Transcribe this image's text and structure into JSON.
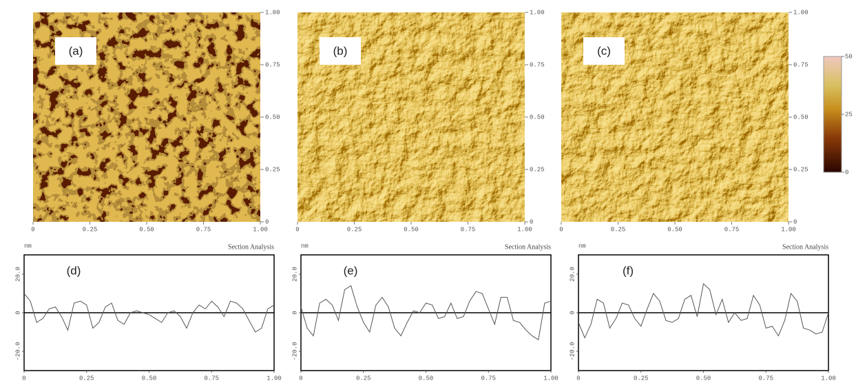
{
  "chart_data": [
    {
      "type": "image",
      "label": "(a)",
      "texture": "grains",
      "xlim": [
        0,
        1
      ],
      "ylim": [
        0,
        1
      ],
      "xticks": [
        0,
        0.25,
        {
          "value": 0.5,
          "label": "0.50"
        },
        0.75,
        {
          "value": 1,
          "label": "1.00"
        }
      ],
      "yticks": [
        0,
        0.25,
        {
          "value": 0.5,
          "label": "0.50"
        },
        0.75,
        {
          "value": 1,
          "label": "1.00"
        }
      ]
    },
    {
      "type": "image",
      "label": "(b)",
      "texture": "relief",
      "xlim": [
        0,
        1
      ],
      "ylim": [
        0,
        1
      ],
      "xticks": [
        0,
        0.25,
        {
          "value": 0.5,
          "label": "0.50"
        },
        0.75,
        {
          "value": 1,
          "label": "1.00"
        }
      ],
      "yticks": [
        0,
        0.25,
        {
          "value": 0.5,
          "label": "0.50"
        },
        0.75,
        {
          "value": 1,
          "label": "1.00"
        }
      ]
    },
    {
      "type": "image",
      "label": "(c)",
      "texture": "relief",
      "xlim": [
        0,
        1
      ],
      "ylim": [
        0,
        1
      ],
      "xticks": [
        0,
        0.25,
        {
          "value": 0.5,
          "label": "0.50"
        },
        0.75,
        {
          "value": 1,
          "label": "1.00"
        }
      ],
      "yticks": [
        0,
        0.25,
        {
          "value": 0.5,
          "label": "0.50"
        },
        0.75,
        {
          "value": 1,
          "label": "1.00"
        }
      ],
      "colorbar_lim": [
        0,
        50
      ],
      "colorbar_ticks": [
        0,
        25,
        50
      ]
    },
    {
      "type": "line",
      "label": "(d)",
      "unit": "nm",
      "title": "Section Analysis",
      "color": "#555555",
      "xlim": [
        0,
        1
      ],
      "ylim": [
        -30,
        30
      ],
      "xticks": [
        0,
        0.25,
        {
          "value": 0.5,
          "label": "0.50"
        },
        0.75,
        {
          "value": 1,
          "label": "1.00"
        }
      ],
      "yticks": [
        {
          "value": -20,
          "label": "-20.0"
        },
        0,
        {
          "value": 20,
          "label": "20.0"
        }
      ],
      "x": [
        0,
        0.025,
        0.05,
        0.075,
        0.1,
        0.125,
        0.15,
        0.175,
        0.2,
        0.225,
        0.25,
        0.275,
        0.3,
        0.325,
        0.35,
        0.375,
        0.4,
        0.425,
        0.45,
        0.475,
        0.5,
        0.525,
        0.55,
        0.575,
        0.6,
        0.625,
        0.65,
        0.675,
        0.7,
        0.725,
        0.75,
        0.775,
        0.8,
        0.825,
        0.85,
        0.875,
        0.9,
        0.925,
        0.95,
        0.975,
        1
      ],
      "values": [
        10,
        6,
        -5,
        -3,
        2,
        3,
        -2,
        -9,
        5,
        6,
        4,
        -8,
        -5,
        3,
        5,
        -4,
        -6,
        0,
        1,
        0,
        -1,
        -3,
        -5,
        0,
        1,
        -2,
        -8,
        0,
        4,
        2,
        6,
        3,
        -2,
        6,
        5,
        2,
        -4,
        -10,
        -8,
        2,
        4
      ]
    },
    {
      "type": "line",
      "label": "(e)",
      "unit": "nm",
      "title": "Section Analysis",
      "color": "#555555",
      "xlim": [
        0,
        1
      ],
      "ylim": [
        -30,
        30
      ],
      "xticks": [
        0,
        0.25,
        {
          "value": 0.5,
          "label": "0.50"
        },
        0.75,
        {
          "value": 1,
          "label": "1.00"
        }
      ],
      "yticks": [
        {
          "value": -20,
          "label": "-20.0"
        },
        0,
        {
          "value": 20,
          "label": "20.0"
        }
      ],
      "x": [
        0,
        0.025,
        0.05,
        0.075,
        0.1,
        0.125,
        0.15,
        0.175,
        0.2,
        0.225,
        0.25,
        0.275,
        0.3,
        0.325,
        0.35,
        0.375,
        0.4,
        0.425,
        0.45,
        0.475,
        0.5,
        0.525,
        0.55,
        0.575,
        0.6,
        0.625,
        0.65,
        0.675,
        0.7,
        0.725,
        0.75,
        0.775,
        0.8,
        0.825,
        0.85,
        0.875,
        0.9,
        0.925,
        0.95,
        0.975,
        1
      ],
      "values": [
        3,
        -8,
        -12,
        5,
        7,
        4,
        -4,
        12,
        14,
        3,
        -5,
        -10,
        4,
        8,
        3,
        -8,
        -12,
        -5,
        1,
        0,
        5,
        4,
        -3,
        -2,
        5,
        -3,
        -2,
        6,
        11,
        10,
        2,
        -6,
        8,
        8,
        -4,
        -5,
        -9,
        -12,
        -14,
        5,
        6
      ]
    },
    {
      "type": "line",
      "label": "(f)",
      "unit": "nm",
      "title": "Section Analysis",
      "color": "#555555",
      "xlim": [
        0,
        1
      ],
      "ylim": [
        -30,
        30
      ],
      "xticks": [
        0,
        0.25,
        {
          "value": 0.5,
          "label": "0.50"
        },
        0.75,
        {
          "value": 1,
          "label": "1.00"
        }
      ],
      "yticks": [
        {
          "value": -20,
          "label": "-20.0"
        },
        0,
        {
          "value": 20,
          "label": "20.0"
        }
      ],
      "x": [
        0,
        0.025,
        0.05,
        0.075,
        0.1,
        0.125,
        0.15,
        0.175,
        0.2,
        0.225,
        0.25,
        0.275,
        0.3,
        0.325,
        0.35,
        0.375,
        0.4,
        0.425,
        0.45,
        0.475,
        0.5,
        0.525,
        0.55,
        0.575,
        0.6,
        0.625,
        0.65,
        0.675,
        0.7,
        0.725,
        0.75,
        0.775,
        0.8,
        0.825,
        0.85,
        0.875,
        0.9,
        0.925,
        0.95,
        0.975,
        1
      ],
      "values": [
        -5,
        -13,
        -6,
        7,
        5,
        -8,
        -3,
        5,
        4,
        -3,
        -7,
        2,
        10,
        6,
        -4,
        -5,
        -3,
        7,
        9,
        -2,
        15,
        12,
        -1,
        7,
        -5,
        0,
        -4,
        -3,
        9,
        4,
        -8,
        -7,
        -12,
        -4,
        10,
        6,
        -8,
        -9,
        -11,
        -10,
        0
      ]
    }
  ]
}
